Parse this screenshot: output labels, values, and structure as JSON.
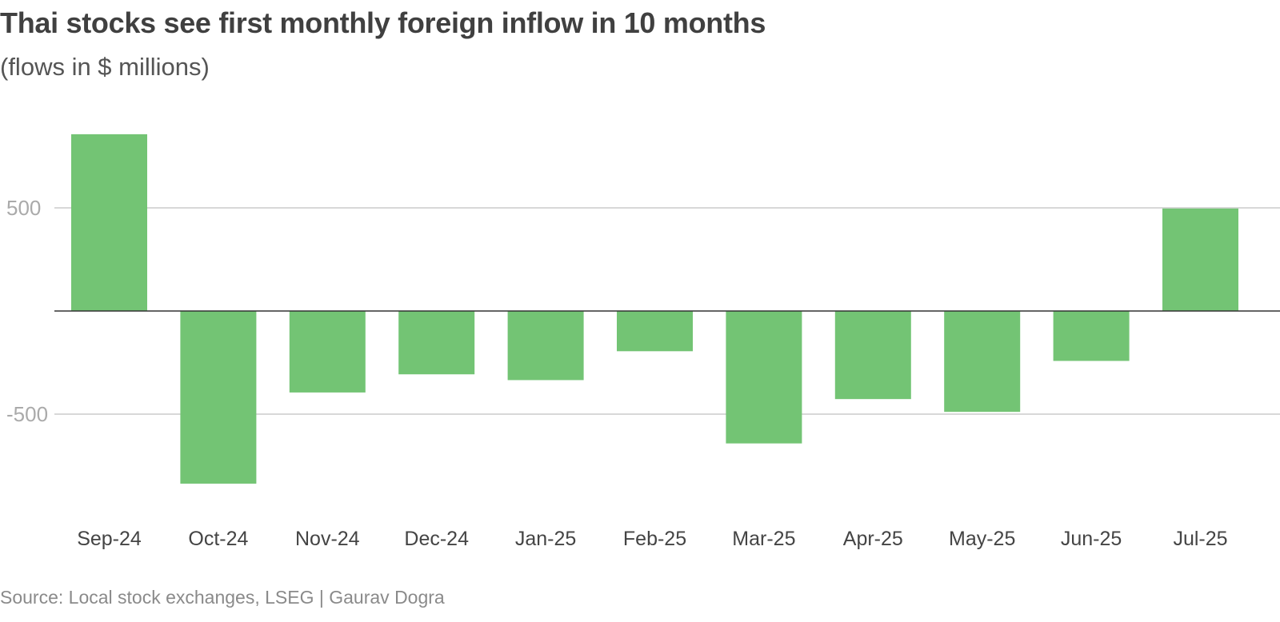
{
  "header": {
    "title": "Thai stocks see first monthly foreign inflow in 10 months",
    "subtitle": "(flows in $ millions)"
  },
  "footer": {
    "source": "Source: Local stock exchanges, LSEG | Gaurav Dogra"
  },
  "colors": {
    "bar": "#73c474",
    "gridline": "#cccccc",
    "zero_line": "#333333",
    "tick_label": "#aaaaaa",
    "category_label": "#444444"
  },
  "chart_data": {
    "type": "bar",
    "title": "Thai stocks see first monthly foreign inflow in 10 months",
    "subtitle": "(flows in $ millions)",
    "xlabel": "",
    "ylabel": "",
    "categories": [
      "Sep-24",
      "Oct-24",
      "Nov-24",
      "Dec-24",
      "Jan-25",
      "Feb-25",
      "Mar-25",
      "Apr-25",
      "May-25",
      "Jun-25",
      "Jul-25"
    ],
    "values": [
      857,
      -837,
      -395,
      -307,
      -335,
      -195,
      -642,
      -427,
      -489,
      -242,
      497
    ],
    "ylim": [
      -1000,
      1000
    ],
    "yticks": [
      500,
      -500
    ],
    "ytick_labels": [
      "500",
      "-500"
    ],
    "grid": true,
    "legend": "none"
  }
}
